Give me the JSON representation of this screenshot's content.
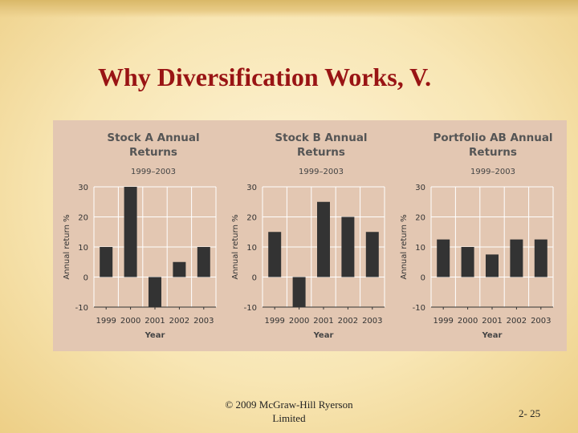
{
  "slide": {
    "title": "Why Diversification Works, V.",
    "footer_copyright": "© 2009 McGraw-Hill Ryerson Limited",
    "page_number": "2- 25"
  },
  "colors": {
    "title": "#991414",
    "figure_bg": "#e3c7b2",
    "bar": "#333333",
    "panel_title": "#555555"
  },
  "chart_data": [
    {
      "type": "bar",
      "title": "Stock A Annual Returns",
      "subtitle": "1999–2003",
      "xlabel": "Year",
      "ylabel": "Annual return %",
      "categories": [
        "1999",
        "2000",
        "2001",
        "2002",
        "2003"
      ],
      "values": [
        10,
        30,
        -10,
        5,
        10
      ],
      "ylim": [
        -10,
        30
      ],
      "yticks": [
        "30",
        "20",
        "10",
        "0",
        "-10"
      ],
      "grid": true
    },
    {
      "type": "bar",
      "title": "Stock B Annual Returns",
      "subtitle": "1999–2003",
      "xlabel": "Year",
      "ylabel": "Annual return %",
      "categories": [
        "1999",
        "2000",
        "2001",
        "2002",
        "2003"
      ],
      "values": [
        15,
        -10,
        25,
        20,
        15
      ],
      "ylim": [
        -10,
        30
      ],
      "yticks": [
        "30",
        "20",
        "10",
        "0",
        "-10"
      ],
      "grid": true
    },
    {
      "type": "bar",
      "title": "Portfolio AB Annual Returns",
      "subtitle": "1999–2003",
      "xlabel": "Year",
      "ylabel": "Annual return %",
      "categories": [
        "1999",
        "2000",
        "2001",
        "2002",
        "2003"
      ],
      "values": [
        12.5,
        10,
        7.5,
        12.5,
        12.5
      ],
      "ylim": [
        -10,
        30
      ],
      "yticks": [
        "30",
        "20",
        "10",
        "0",
        "-10"
      ],
      "grid": true
    }
  ]
}
